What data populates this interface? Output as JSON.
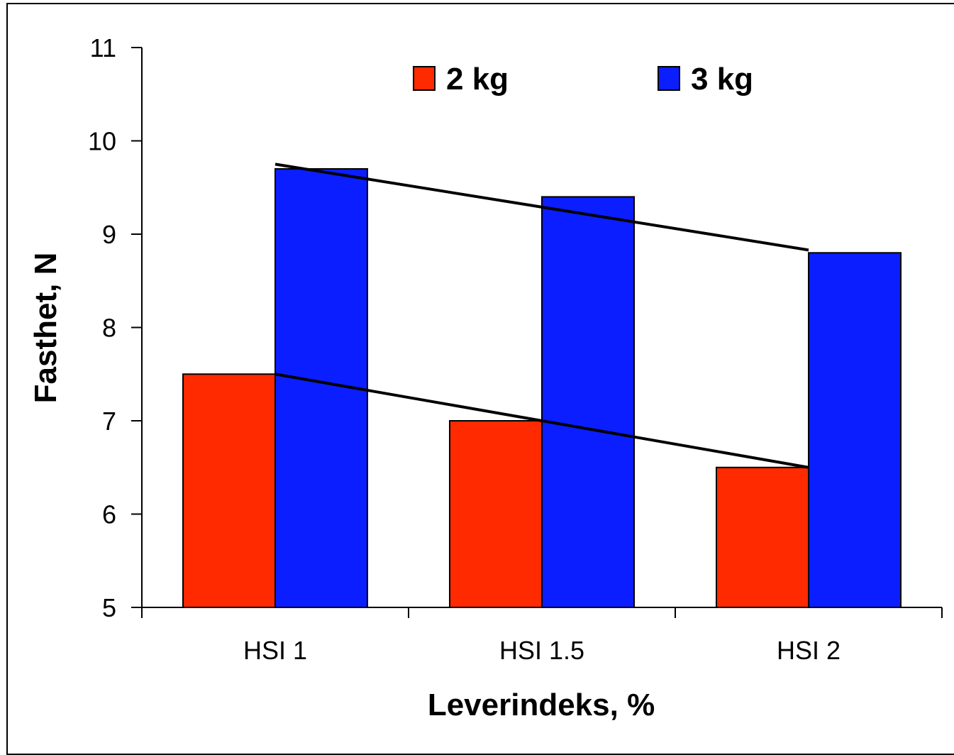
{
  "chart_data": {
    "type": "bar",
    "categories": [
      "HSI 1",
      "HSI 1.5",
      "HSI 2"
    ],
    "series": [
      {
        "name": "2 kg",
        "color": "#FF2A00",
        "values": [
          7.5,
          7.0,
          6.5
        ]
      },
      {
        "name": "3 kg",
        "color": "#0B1EFF",
        "values": [
          9.7,
          9.4,
          8.8
        ]
      }
    ],
    "trend_lines": [
      {
        "series": "2 kg",
        "from": 7.5,
        "to": 6.5
      },
      {
        "series": "3 kg",
        "from": 9.75,
        "to": 8.83
      }
    ],
    "xlabel": "Leverindeks, %",
    "ylabel": "Fasthet, N",
    "ylim": [
      5,
      11
    ],
    "yticks": [
      5,
      6,
      7,
      8,
      9,
      10,
      11
    ],
    "grid": false,
    "legend": "top"
  }
}
